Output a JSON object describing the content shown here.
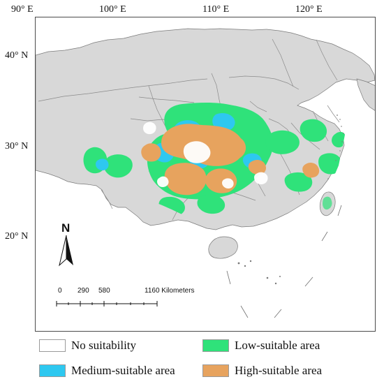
{
  "map": {
    "lon_labels": [
      "90° E",
      "100° E",
      "110° E",
      "120° E"
    ],
    "lat_labels": [
      "40° N",
      "30° N",
      "20° N"
    ],
    "north_label": "N",
    "scale": {
      "ticks": [
        "0",
        "290",
        "580"
      ],
      "last_label": "1160 Kilometers"
    }
  },
  "legend": {
    "items": [
      {
        "label": "No suitability",
        "color": "#ffffff"
      },
      {
        "label": "Low-suitable area",
        "color": "#2fe27a"
      },
      {
        "label": "Medium-suitable area",
        "color": "#2ec8f0"
      },
      {
        "label": "High-suitable area",
        "color": "#e7a35e"
      }
    ]
  },
  "colors": {
    "land": "#d8d8d8",
    "border": "#7a7a7a",
    "low": "#2fe27a",
    "medium": "#2ec8f0",
    "high": "#e7a35e"
  }
}
